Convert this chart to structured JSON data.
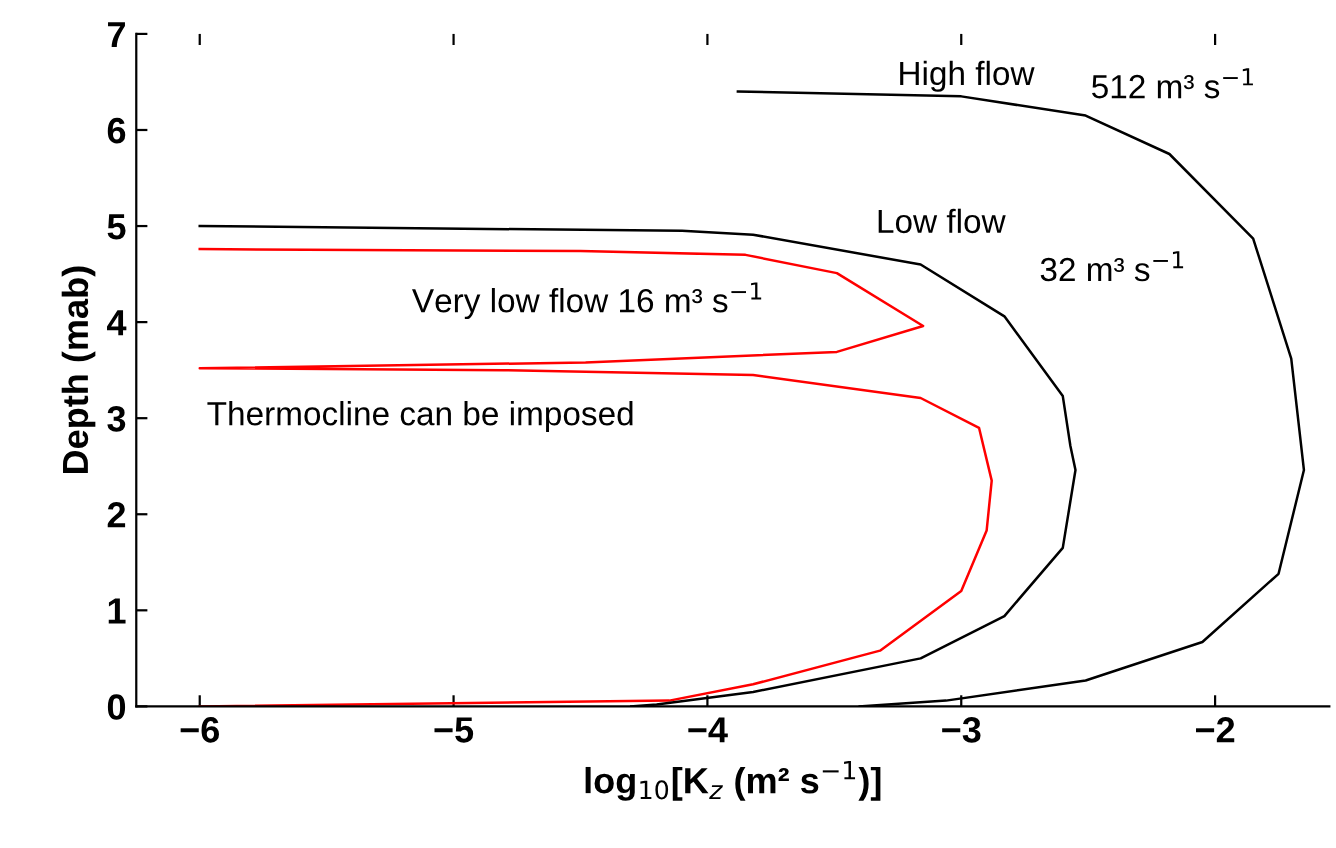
{
  "chart_data": {
    "type": "line",
    "xlabel": "log$_{10}$[K$_{z}$ (m² s$^{−1}$)]",
    "ylabel": "Depth (mab)",
    "xlim": [
      -6.25,
      -1.55
    ],
    "xticks": [
      -6,
      -5,
      -4,
      -3,
      -2
    ],
    "ylim": [
      0,
      7
    ],
    "yticks": [
      0,
      1,
      2,
      3,
      4,
      5,
      6,
      7
    ],
    "grid": false,
    "legend": false,
    "line_style": "solid",
    "marker": "none",
    "series": [
      {
        "color": "#ff0000",
        "x": [
          -6,
          -4.5,
          -3.85,
          -3.49,
          -3.15,
          -3.49,
          -4.48,
          -6,
          -4.8,
          -3.82,
          -3.16,
          -2.93,
          -2.88,
          -2.9,
          -3.0,
          -3.32,
          -3.82,
          -4.15,
          -6
        ],
        "values": [
          4.76,
          4.74,
          4.7,
          4.51,
          3.96,
          3.69,
          3.58,
          3.52,
          3.5,
          3.45,
          3.21,
          2.9,
          2.35,
          1.83,
          1.2,
          0.58,
          0.23,
          0.06,
          0
        ]
      },
      {
        "color": "#000000",
        "x": [
          -6,
          -4.1,
          -3.82,
          -3.16,
          -2.83,
          -2.6,
          -2.57,
          -2.55,
          -2.6,
          -2.83,
          -3.16,
          -3.82,
          -4.2,
          -4.3
        ],
        "values": [
          5.0,
          4.95,
          4.91,
          4.6,
          4.06,
          3.23,
          2.71,
          2.46,
          1.65,
          0.94,
          0.5,
          0.15,
          0.02,
          0
        ]
      },
      {
        "color": "#000000",
        "x": [
          -3.88,
          -3.0,
          -2.51,
          -2.18,
          -1.85,
          -1.7,
          -1.65,
          -1.75,
          -2.05,
          -2.51,
          -3.06,
          -3.4
        ],
        "values": [
          6.4,
          6.35,
          6.15,
          5.75,
          4.87,
          3.62,
          2.46,
          1.38,
          0.67,
          0.27,
          0.06,
          0
        ]
      }
    ],
    "annotations": [
      "High flow",
      "512 m³ s$^{−1}$",
      "Low flow",
      "32 m³ s$^{−1}$",
      "Very low flow 16 m³ s$^{−1}$",
      "Thermocline can be imposed"
    ]
  }
}
